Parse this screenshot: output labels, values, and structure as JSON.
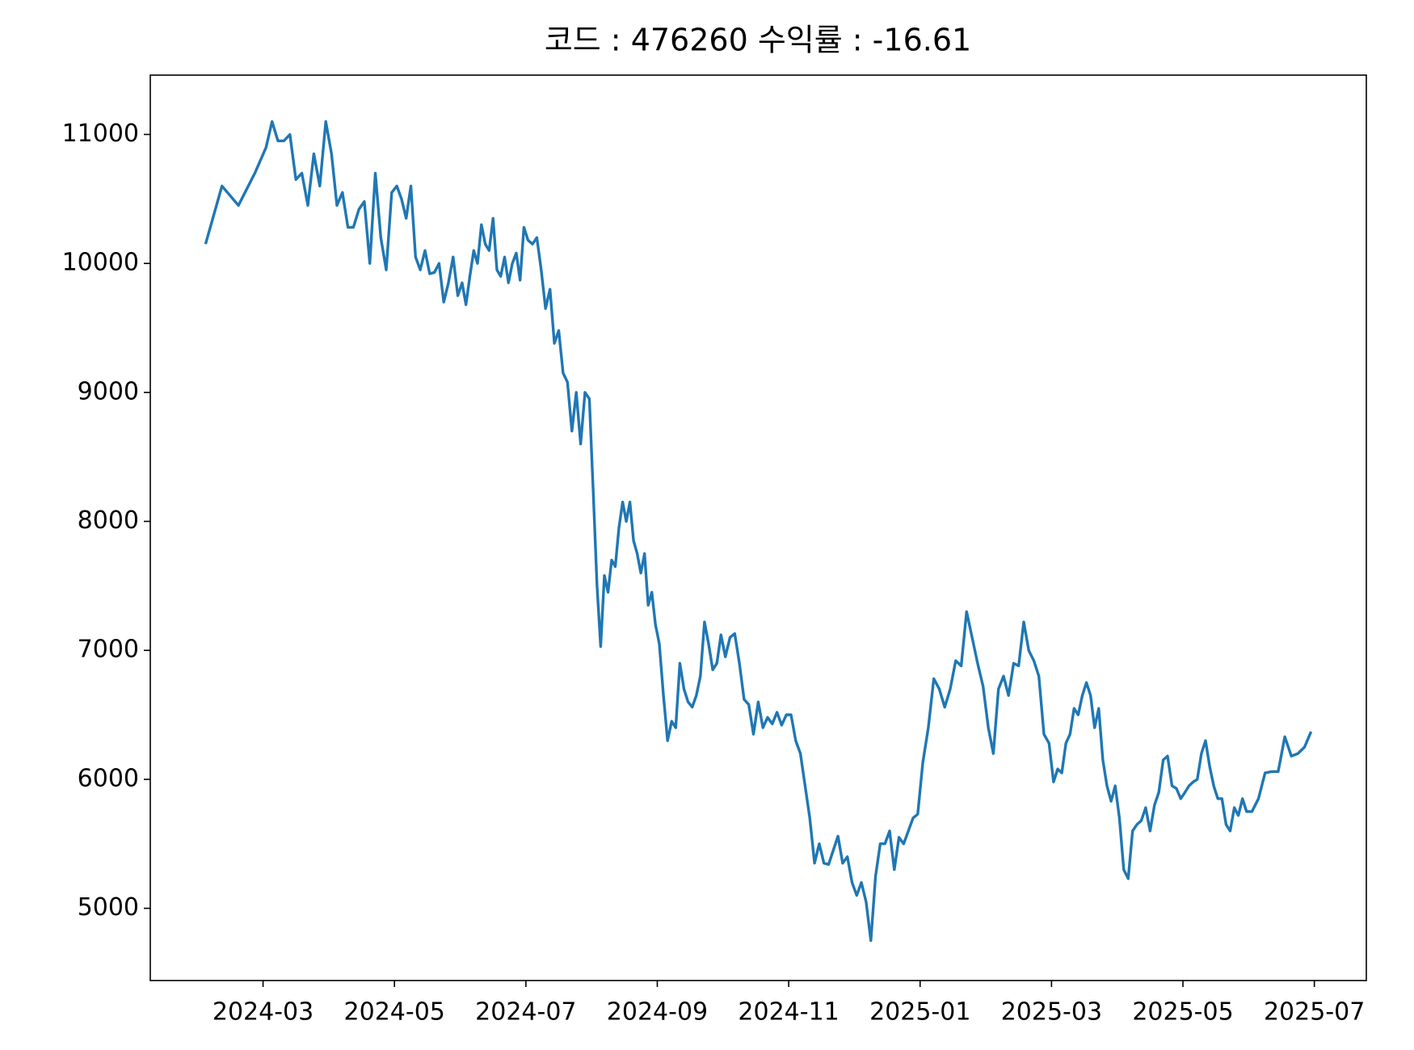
{
  "chart_data": {
    "type": "line",
    "title": "코드 : 476260 수익률 : -16.61",
    "color": "#1f77b4",
    "x": [
      "2024-02",
      "2024-02",
      "2024-02",
      "2024-02",
      "2024-03",
      "2024-03",
      "2024-03",
      "2024-03",
      "2024-03",
      "2024-03",
      "2024-03",
      "2024-03",
      "2024-03",
      "2024-03",
      "2024-03",
      "2024-04",
      "2024-04",
      "2024-04",
      "2024-04",
      "2024-04",
      "2024-04",
      "2024-04",
      "2024-04",
      "2024-04",
      "2024-04",
      "2024-04",
      "2024-04",
      "2024-05",
      "2024-05",
      "2024-05",
      "2024-05",
      "2024-05",
      "2024-05",
      "2024-05",
      "2024-05",
      "2024-05",
      "2024-05",
      "2024-05",
      "2024-05",
      "2024-05",
      "2024-05",
      "2024-06",
      "2024-06",
      "2024-06",
      "2024-06",
      "2024-06",
      "2024-06",
      "2024-06",
      "2024-06",
      "2024-06",
      "2024-06",
      "2024-06",
      "2024-06",
      "2024-06",
      "2024-06",
      "2024-06",
      "2024-06",
      "2024-06",
      "2024-07",
      "2024-07",
      "2024-07",
      "2024-07",
      "2024-07",
      "2024-07",
      "2024-07",
      "2024-07",
      "2024-07",
      "2024-07",
      "2024-07",
      "2024-07",
      "2024-07",
      "2024-07",
      "2024-07",
      "2024-08",
      "2024-08",
      "2024-08",
      "2024-08",
      "2024-08",
      "2024-08",
      "2024-08",
      "2024-08",
      "2024-08",
      "2024-08",
      "2024-08",
      "2024-08",
      "2024-08",
      "2024-08",
      "2024-08",
      "2024-08",
      "2024-08",
      "2024-08",
      "2024-09",
      "2024-09",
      "2024-09",
      "2024-09",
      "2024-09",
      "2024-09",
      "2024-09",
      "2024-09",
      "2024-09",
      "2024-09",
      "2024-09",
      "2024-09",
      "2024-09",
      "2024-09",
      "2024-09",
      "2024-09",
      "2024-10",
      "2024-10",
      "2024-10",
      "2024-10",
      "2024-10",
      "2024-10",
      "2024-10",
      "2024-10",
      "2024-10",
      "2024-10",
      "2024-10",
      "2024-10",
      "2024-10",
      "2024-10",
      "2024-11",
      "2024-11",
      "2024-11",
      "2024-11",
      "2024-11",
      "2024-11",
      "2024-11",
      "2024-11",
      "2024-11",
      "2024-11",
      "2024-11",
      "2024-11",
      "2024-11",
      "2024-11",
      "2024-12",
      "2024-12",
      "2024-12",
      "2024-12",
      "2024-12",
      "2024-12",
      "2024-12",
      "2024-12",
      "2024-12",
      "2024-12",
      "2024-12",
      "2024-12",
      "2024-12",
      "2024-12",
      "2025-01",
      "2025-01",
      "2025-01",
      "2025-01",
      "2025-01",
      "2025-01",
      "2025-01",
      "2025-01",
      "2025-01",
      "2025-01",
      "2025-01",
      "2025-01",
      "2025-02",
      "2025-02",
      "2025-02",
      "2025-02",
      "2025-02",
      "2025-02",
      "2025-02",
      "2025-02",
      "2025-02",
      "2025-02",
      "2025-02",
      "2025-02",
      "2025-02",
      "2025-03",
      "2025-03",
      "2025-03",
      "2025-03",
      "2025-03",
      "2025-03",
      "2025-03",
      "2025-03",
      "2025-03",
      "2025-03",
      "2025-03",
      "2025-03",
      "2025-03",
      "2025-03",
      "2025-03",
      "2025-03",
      "2025-04",
      "2025-04",
      "2025-04",
      "2025-04",
      "2025-04",
      "2025-04",
      "2025-04",
      "2025-04",
      "2025-04",
      "2025-04",
      "2025-04",
      "2025-04",
      "2025-04",
      "2025-04",
      "2025-04",
      "2025-05",
      "2025-05",
      "2025-05",
      "2025-05",
      "2025-05",
      "2025-05",
      "2025-05",
      "2025-05",
      "2025-05",
      "2025-05",
      "2025-05",
      "2025-05",
      "2025-05",
      "2025-05",
      "2025-05",
      "2025-05",
      "2025-06",
      "2025-06",
      "2025-06",
      "2025-06",
      "2025-06",
      "2025-06",
      "2025-06",
      "2025-06",
      "2025-06",
      "2025-06"
    ],
    "values": [
      10150,
      10600,
      10450,
      10700,
      10900,
      11100,
      10950,
      10950,
      11000,
      10650,
      10700,
      10450,
      10850,
      10600,
      11100,
      10850,
      10450,
      10550,
      10280,
      10280,
      10420,
      10480,
      10000,
      10700,
      10200,
      9950,
      10550,
      10600,
      10500,
      10350,
      10600,
      10050,
      9950,
      10100,
      9920,
      9930,
      10000,
      9700,
      9850,
      10050,
      9750,
      9850,
      9680,
      9900,
      10100,
      10000,
      10300,
      10150,
      10100,
      10350,
      9950,
      9900,
      10050,
      9850,
      10000,
      10080,
      9870,
      10280,
      10180,
      10150,
      10200,
      9950,
      9650,
      9800,
      9380,
      9480,
      9150,
      9080,
      8700,
      9000,
      8600,
      9000,
      8950,
      8200,
      7500,
      7030,
      7580,
      7450,
      7700,
      7650,
      7950,
      8150,
      8000,
      8150,
      7850,
      7750,
      7600,
      7750,
      7350,
      7450,
      7200,
      7050,
      6650,
      6300,
      6450,
      6400,
      6900,
      6700,
      6600,
      6560,
      6650,
      6800,
      7220,
      7050,
      6850,
      6900,
      7120,
      6950,
      7100,
      7130,
      6900,
      6620,
      6580,
      6350,
      6600,
      6400,
      6480,
      6430,
      6520,
      6420,
      6500,
      6500,
      6300,
      6200,
      5950,
      5700,
      5350,
      5500,
      5350,
      5340,
      5450,
      5560,
      5350,
      5400,
      5200,
      5100,
      5200,
      5050,
      4750,
      5250,
      5500,
      5500,
      5600,
      5300,
      5550,
      5500,
      5600,
      5700,
      5730,
      6130,
      6400,
      6780,
      6700,
      6560,
      6700,
      6920,
      6880,
      7300,
      7100,
      6900,
      6720,
      6400,
      6200,
      6700,
      6800,
      6650,
      6900,
      6880,
      7220,
      7000,
      6920,
      6800,
      6350,
      6280,
      5980,
      6080,
      6050,
      6280,
      6350,
      6550,
      6500,
      6650,
      6750,
      6650,
      6400,
      6550,
      6150,
      5950,
      5830,
      5950,
      5700,
      5300,
      5230,
      5600,
      5650,
      5680,
      5780,
      5600,
      5800,
      5900,
      6150,
      6180,
      5950,
      5930,
      5850,
      5900,
      5950,
      5980,
      6000,
      6200,
      6300,
      6100,
      5950,
      5850,
      5850,
      5650,
      5600,
      5780,
      5720,
      5850,
      5750,
      5750,
      5850,
      6050,
      6060,
      6060,
      6330,
      6180,
      6200,
      6250,
      6370
    ],
    "ylim": [
      4440,
      11460
    ],
    "yticks": [
      5000,
      6000,
      7000,
      8000,
      9000,
      10000,
      11000
    ],
    "xticks": [
      "2024-03",
      "2024-05",
      "2024-07",
      "2024-09",
      "2024-11",
      "2025-01",
      "2025-03",
      "2025-05",
      "2025-07"
    ]
  }
}
